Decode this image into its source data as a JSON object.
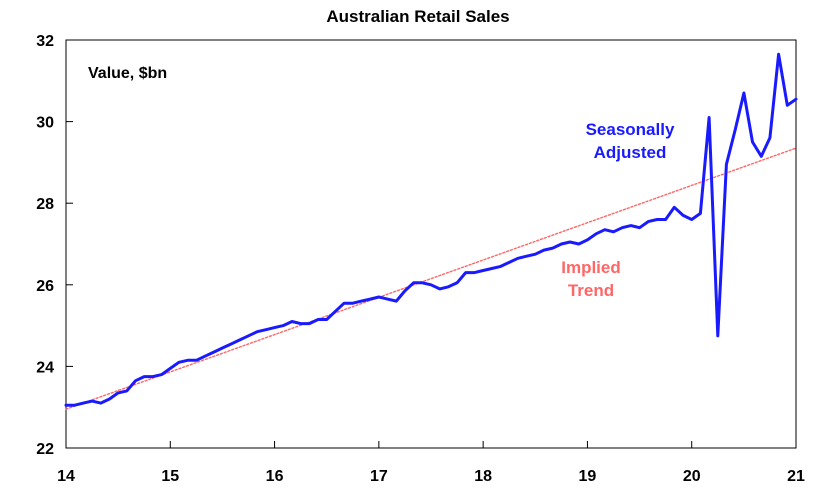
{
  "chart_data": {
    "type": "line",
    "title": "Australian Retail Sales",
    "inner_label": "Value, $bn",
    "ylim": [
      22,
      32
    ],
    "yticks": [
      22,
      24,
      26,
      28,
      30,
      32
    ],
    "xlim": [
      2014,
      2021
    ],
    "xtick_values": [
      2014,
      2015,
      2016,
      2017,
      2018,
      2019,
      2020,
      2021
    ],
    "xtick_labels": [
      "14",
      "15",
      "16",
      "17",
      "18",
      "19",
      "20",
      "21"
    ],
    "grid": false,
    "series": [
      {
        "name": "Seasonally Adjusted",
        "color": "#1a1aff",
        "annotation": [
          "Seasonally",
          "Adjusted"
        ],
        "x": [
          2014.0,
          2014.083,
          2014.167,
          2014.25,
          2014.333,
          2014.417,
          2014.5,
          2014.583,
          2014.667,
          2014.75,
          2014.833,
          2014.917,
          2015.0,
          2015.083,
          2015.167,
          2015.25,
          2015.333,
          2015.417,
          2015.5,
          2015.583,
          2015.667,
          2015.75,
          2015.833,
          2015.917,
          2016.0,
          2016.083,
          2016.167,
          2016.25,
          2016.333,
          2016.417,
          2016.5,
          2016.583,
          2016.667,
          2016.75,
          2016.833,
          2016.917,
          2017.0,
          2017.083,
          2017.167,
          2017.25,
          2017.333,
          2017.417,
          2017.5,
          2017.583,
          2017.667,
          2017.75,
          2017.833,
          2017.917,
          2018.0,
          2018.083,
          2018.167,
          2018.25,
          2018.333,
          2018.417,
          2018.5,
          2018.583,
          2018.667,
          2018.75,
          2018.833,
          2018.917,
          2019.0,
          2019.083,
          2019.167,
          2019.25,
          2019.333,
          2019.417,
          2019.5,
          2019.583,
          2019.667,
          2019.75,
          2019.833,
          2019.917,
          2020.0,
          2020.083,
          2020.167,
          2020.25,
          2020.333,
          2020.417,
          2020.5,
          2020.583,
          2020.667,
          2020.75,
          2020.833,
          2020.917,
          2021.0
        ],
        "y": [
          23.05,
          23.05,
          23.1,
          23.15,
          23.1,
          23.2,
          23.35,
          23.4,
          23.65,
          23.75,
          23.75,
          23.8,
          23.95,
          24.1,
          24.15,
          24.15,
          24.25,
          24.35,
          24.45,
          24.55,
          24.65,
          24.75,
          24.85,
          24.9,
          24.95,
          25.0,
          25.1,
          25.05,
          25.05,
          25.15,
          25.15,
          25.35,
          25.55,
          25.55,
          25.6,
          25.65,
          25.7,
          25.65,
          25.6,
          25.85,
          26.05,
          26.05,
          26.0,
          25.9,
          25.95,
          26.05,
          26.3,
          26.3,
          26.35,
          26.4,
          26.45,
          26.55,
          26.65,
          26.7,
          26.75,
          26.85,
          26.9,
          27.0,
          27.05,
          27.0,
          27.1,
          27.25,
          27.35,
          27.3,
          27.4,
          27.45,
          27.4,
          27.55,
          27.6,
          27.6,
          27.9,
          27.7,
          27.6,
          27.75,
          30.1,
          24.75,
          28.95,
          29.8,
          30.7,
          29.5,
          29.15,
          29.6,
          31.65,
          30.4,
          30.55
        ]
      },
      {
        "name": "Implied Trend",
        "color": "#ff6666",
        "annotation": [
          "Implied",
          "Trend"
        ],
        "x": [
          2014.0,
          2021.0
        ],
        "y": [
          22.95,
          29.35
        ]
      }
    ]
  }
}
